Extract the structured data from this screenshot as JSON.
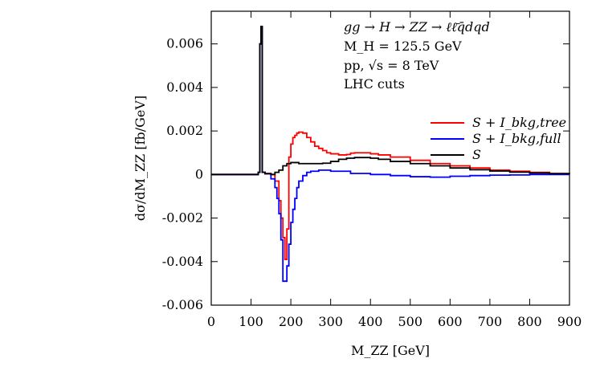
{
  "chart_data": {
    "type": "line",
    "title": "",
    "xlabel": "M_ZZ [GeV]",
    "ylabel": "dσ/dM_ZZ [fb/GeV]",
    "xlim": [
      0,
      900
    ],
    "ylim": [
      -0.006,
      0.0075
    ],
    "xticks": [
      0,
      100,
      200,
      300,
      400,
      500,
      600,
      700,
      800,
      900
    ],
    "xtick_labels": [
      "0",
      "100",
      "200",
      "300",
      "400",
      "500",
      "600",
      "700",
      "800",
      "900"
    ],
    "yticks": [
      -0.006,
      -0.004,
      -0.002,
      0,
      0.002,
      0.004,
      0.006
    ],
    "ytick_labels": [
      "-0.006",
      "-0.004",
      "-0.002",
      "0",
      "0.002",
      "0.004",
      "0.006"
    ],
    "annotations": [
      "gg → H → ZZ → ℓℓ̄q̄dqd",
      "M_H = 125.5 GeV",
      "pp, √s = 8 TeV",
      "LHC cuts"
    ],
    "legend_position": "right",
    "series": [
      {
        "name": "S + I_bkg,tree",
        "color": "#ff0000",
        "x": [
          0,
          100,
          118,
          122,
          125,
          128,
          135,
          150,
          160,
          170,
          175,
          180,
          185,
          190,
          195,
          200,
          205,
          210,
          215,
          220,
          230,
          240,
          250,
          260,
          270,
          280,
          290,
          300,
          320,
          340,
          350,
          360,
          380,
          400,
          420,
          450,
          500,
          550,
          600,
          650,
          700,
          750,
          800,
          850,
          900
        ],
        "y": [
          0,
          0,
          0.0001,
          0.006,
          0.0068,
          0.0001,
          5e-05,
          0,
          -0.0003,
          -0.0012,
          -0.002,
          -0.0029,
          -0.0039,
          -0.0025,
          0.0008,
          0.0014,
          0.0017,
          0.0018,
          0.0019,
          0.00195,
          0.0019,
          0.0017,
          0.0015,
          0.0013,
          0.0012,
          0.0011,
          0.001,
          0.00095,
          0.0009,
          0.00092,
          0.00098,
          0.001,
          0.001,
          0.00095,
          0.0009,
          0.0008,
          0.00065,
          0.0005,
          0.0004,
          0.0003,
          0.0002,
          0.00015,
          0.0001,
          5e-05,
          3e-05
        ]
      },
      {
        "name": "S + I_bkg,full",
        "color": "#0000ff",
        "x": [
          0,
          100,
          118,
          122,
          125,
          128,
          135,
          150,
          160,
          165,
          170,
          175,
          180,
          185,
          190,
          195,
          200,
          205,
          210,
          215,
          220,
          230,
          240,
          250,
          270,
          300,
          350,
          400,
          450,
          500,
          550,
          600,
          650,
          700,
          750,
          800,
          850,
          900
        ],
        "y": [
          0,
          0,
          0.0001,
          0.006,
          0.0068,
          0.0001,
          3e-05,
          -0.0002,
          -0.0006,
          -0.0011,
          -0.0018,
          -0.003,
          -0.0049,
          -0.0049,
          -0.0042,
          -0.0032,
          -0.0022,
          -0.0016,
          -0.0011,
          -0.0006,
          -0.0003,
          -5e-05,
          0.0001,
          0.00015,
          0.0002,
          0.00015,
          5e-05,
          0,
          -5e-05,
          -0.0001,
          -0.00012,
          -8e-05,
          -5e-05,
          -3e-05,
          -2e-05,
          0,
          0,
          0
        ]
      },
      {
        "name": "S",
        "color": "#000000",
        "x": [
          0,
          100,
          118,
          122,
          125,
          128,
          135,
          150,
          160,
          170,
          180,
          190,
          200,
          220,
          250,
          280,
          300,
          320,
          340,
          360,
          380,
          400,
          420,
          450,
          500,
          550,
          600,
          650,
          700,
          750,
          800,
          850,
          900
        ],
        "y": [
          0,
          0,
          0.0001,
          0.006,
          0.0068,
          0.0001,
          4e-05,
          0,
          0.0001,
          0.0002,
          0.0004,
          0.0005,
          0.00055,
          0.0005,
          0.0005,
          0.00052,
          0.0006,
          0.0007,
          0.00075,
          0.00078,
          0.00078,
          0.00075,
          0.0007,
          0.0006,
          0.0005,
          0.0004,
          0.0003,
          0.00022,
          0.00016,
          0.00011,
          7e-05,
          4e-05,
          2e-05
        ]
      }
    ]
  }
}
